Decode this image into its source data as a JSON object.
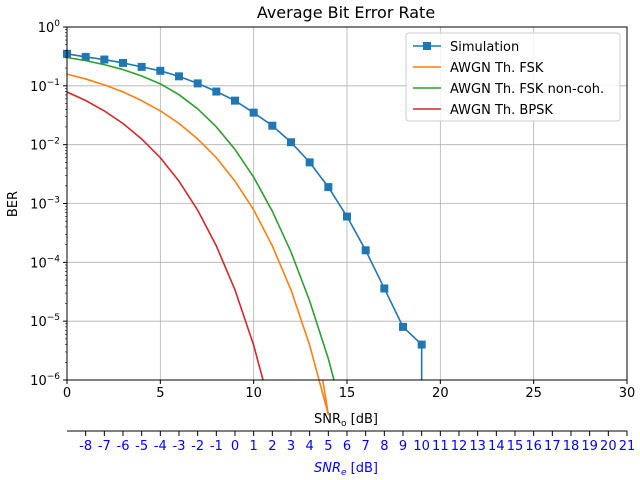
{
  "chart_data": {
    "type": "line",
    "title": "Average Bit Error Rate",
    "xlabel_main": "SNR",
    "xlabel_sub": "o",
    "xlabel_unit": " [dB]",
    "ylabel": "BER",
    "xlim": [
      0,
      30
    ],
    "ylim_log10": [
      -6,
      0
    ],
    "grid": true,
    "legend_position": "top-right",
    "x_ticks": [
      0,
      5,
      10,
      15,
      20,
      25,
      30
    ],
    "x_tick_labels": [
      "0",
      "5",
      "10",
      "15",
      "20",
      "25",
      "30"
    ],
    "y_tick_exponents": [
      0,
      -1,
      -2,
      -3,
      -4,
      -5,
      -6
    ],
    "y_tick_base": "10",
    "y_tick_exp_labels": [
      "0",
      "−1",
      "−2",
      "−3",
      "−4",
      "−5",
      "−6"
    ],
    "secondary_axis": {
      "label_main": "SNR",
      "label_sub": "e",
      "label_unit": " [dB]",
      "ticks_primary_x": [
        1,
        2,
        3,
        4,
        5,
        6,
        7,
        8,
        9,
        10,
        11,
        12,
        13,
        14,
        15,
        16,
        17,
        18,
        19,
        20,
        21,
        22,
        23,
        24,
        25,
        26,
        27,
        28,
        29,
        30
      ],
      "tick_labels": [
        "-8",
        "-7",
        "-6",
        "-5",
        "-4",
        "-3",
        "-2",
        "-1",
        "0",
        "1",
        "2",
        "3",
        "4",
        "5",
        "6",
        "7",
        "8",
        "9",
        "10",
        "11",
        "12",
        "13",
        "14",
        "15",
        "16",
        "17",
        "18",
        "19",
        "20",
        "21"
      ]
    },
    "series": [
      {
        "name": "Simulation",
        "color": "#1f77b4",
        "marker": "square",
        "x": [
          0,
          1,
          2,
          3,
          4,
          5,
          6,
          7,
          8,
          9,
          10,
          11,
          12,
          13,
          14,
          15,
          16,
          17,
          18,
          19,
          19
        ],
        "y": [
          0.35,
          0.31,
          0.28,
          0.245,
          0.21,
          0.18,
          0.145,
          0.11,
          0.08,
          0.056,
          0.035,
          0.021,
          0.011,
          0.005,
          0.0019,
          0.0006,
          0.00016,
          3.6e-05,
          8e-06,
          4e-06,
          1e-06
        ],
        "marker_count": 20
      },
      {
        "name": "AWGN Th. FSK",
        "color": "#ff7f0e",
        "x": [
          0,
          1,
          2,
          3,
          4,
          5,
          6,
          7,
          8,
          9,
          10,
          11,
          12,
          13,
          14,
          13.7
        ],
        "y": [
          0.158,
          0.131,
          0.104,
          0.079,
          0.056,
          0.0375,
          0.023,
          0.0125,
          0.006,
          0.0024,
          0.00078,
          0.00019,
          3.4e-05,
          3.9e-06,
          2.6e-07,
          1e-06
        ]
      },
      {
        "name": "AWGN Th. FSK non-coh.",
        "color": "#2ca02c",
        "x": [
          0,
          1,
          2,
          3,
          4,
          5,
          6,
          7,
          8,
          9,
          10,
          11,
          12,
          13,
          14,
          14.3
        ],
        "y": [
          0.303,
          0.268,
          0.229,
          0.189,
          0.147,
          0.108,
          0.0707,
          0.0407,
          0.0201,
          0.0083,
          0.0028,
          0.00074,
          0.00015,
          2.2e-05,
          2.3e-06,
          1e-06
        ]
      },
      {
        "name": "AWGN Th. BPSK",
        "color": "#d62728",
        "x": [
          0,
          1,
          2,
          3,
          4,
          5,
          6,
          7,
          8,
          9,
          10,
          10.5
        ],
        "y": [
          0.0786,
          0.0563,
          0.0375,
          0.0229,
          0.0125,
          0.006,
          0.0024,
          0.00077,
          0.00019,
          3.4e-05,
          3.9e-06,
          1e-06
        ]
      }
    ]
  }
}
